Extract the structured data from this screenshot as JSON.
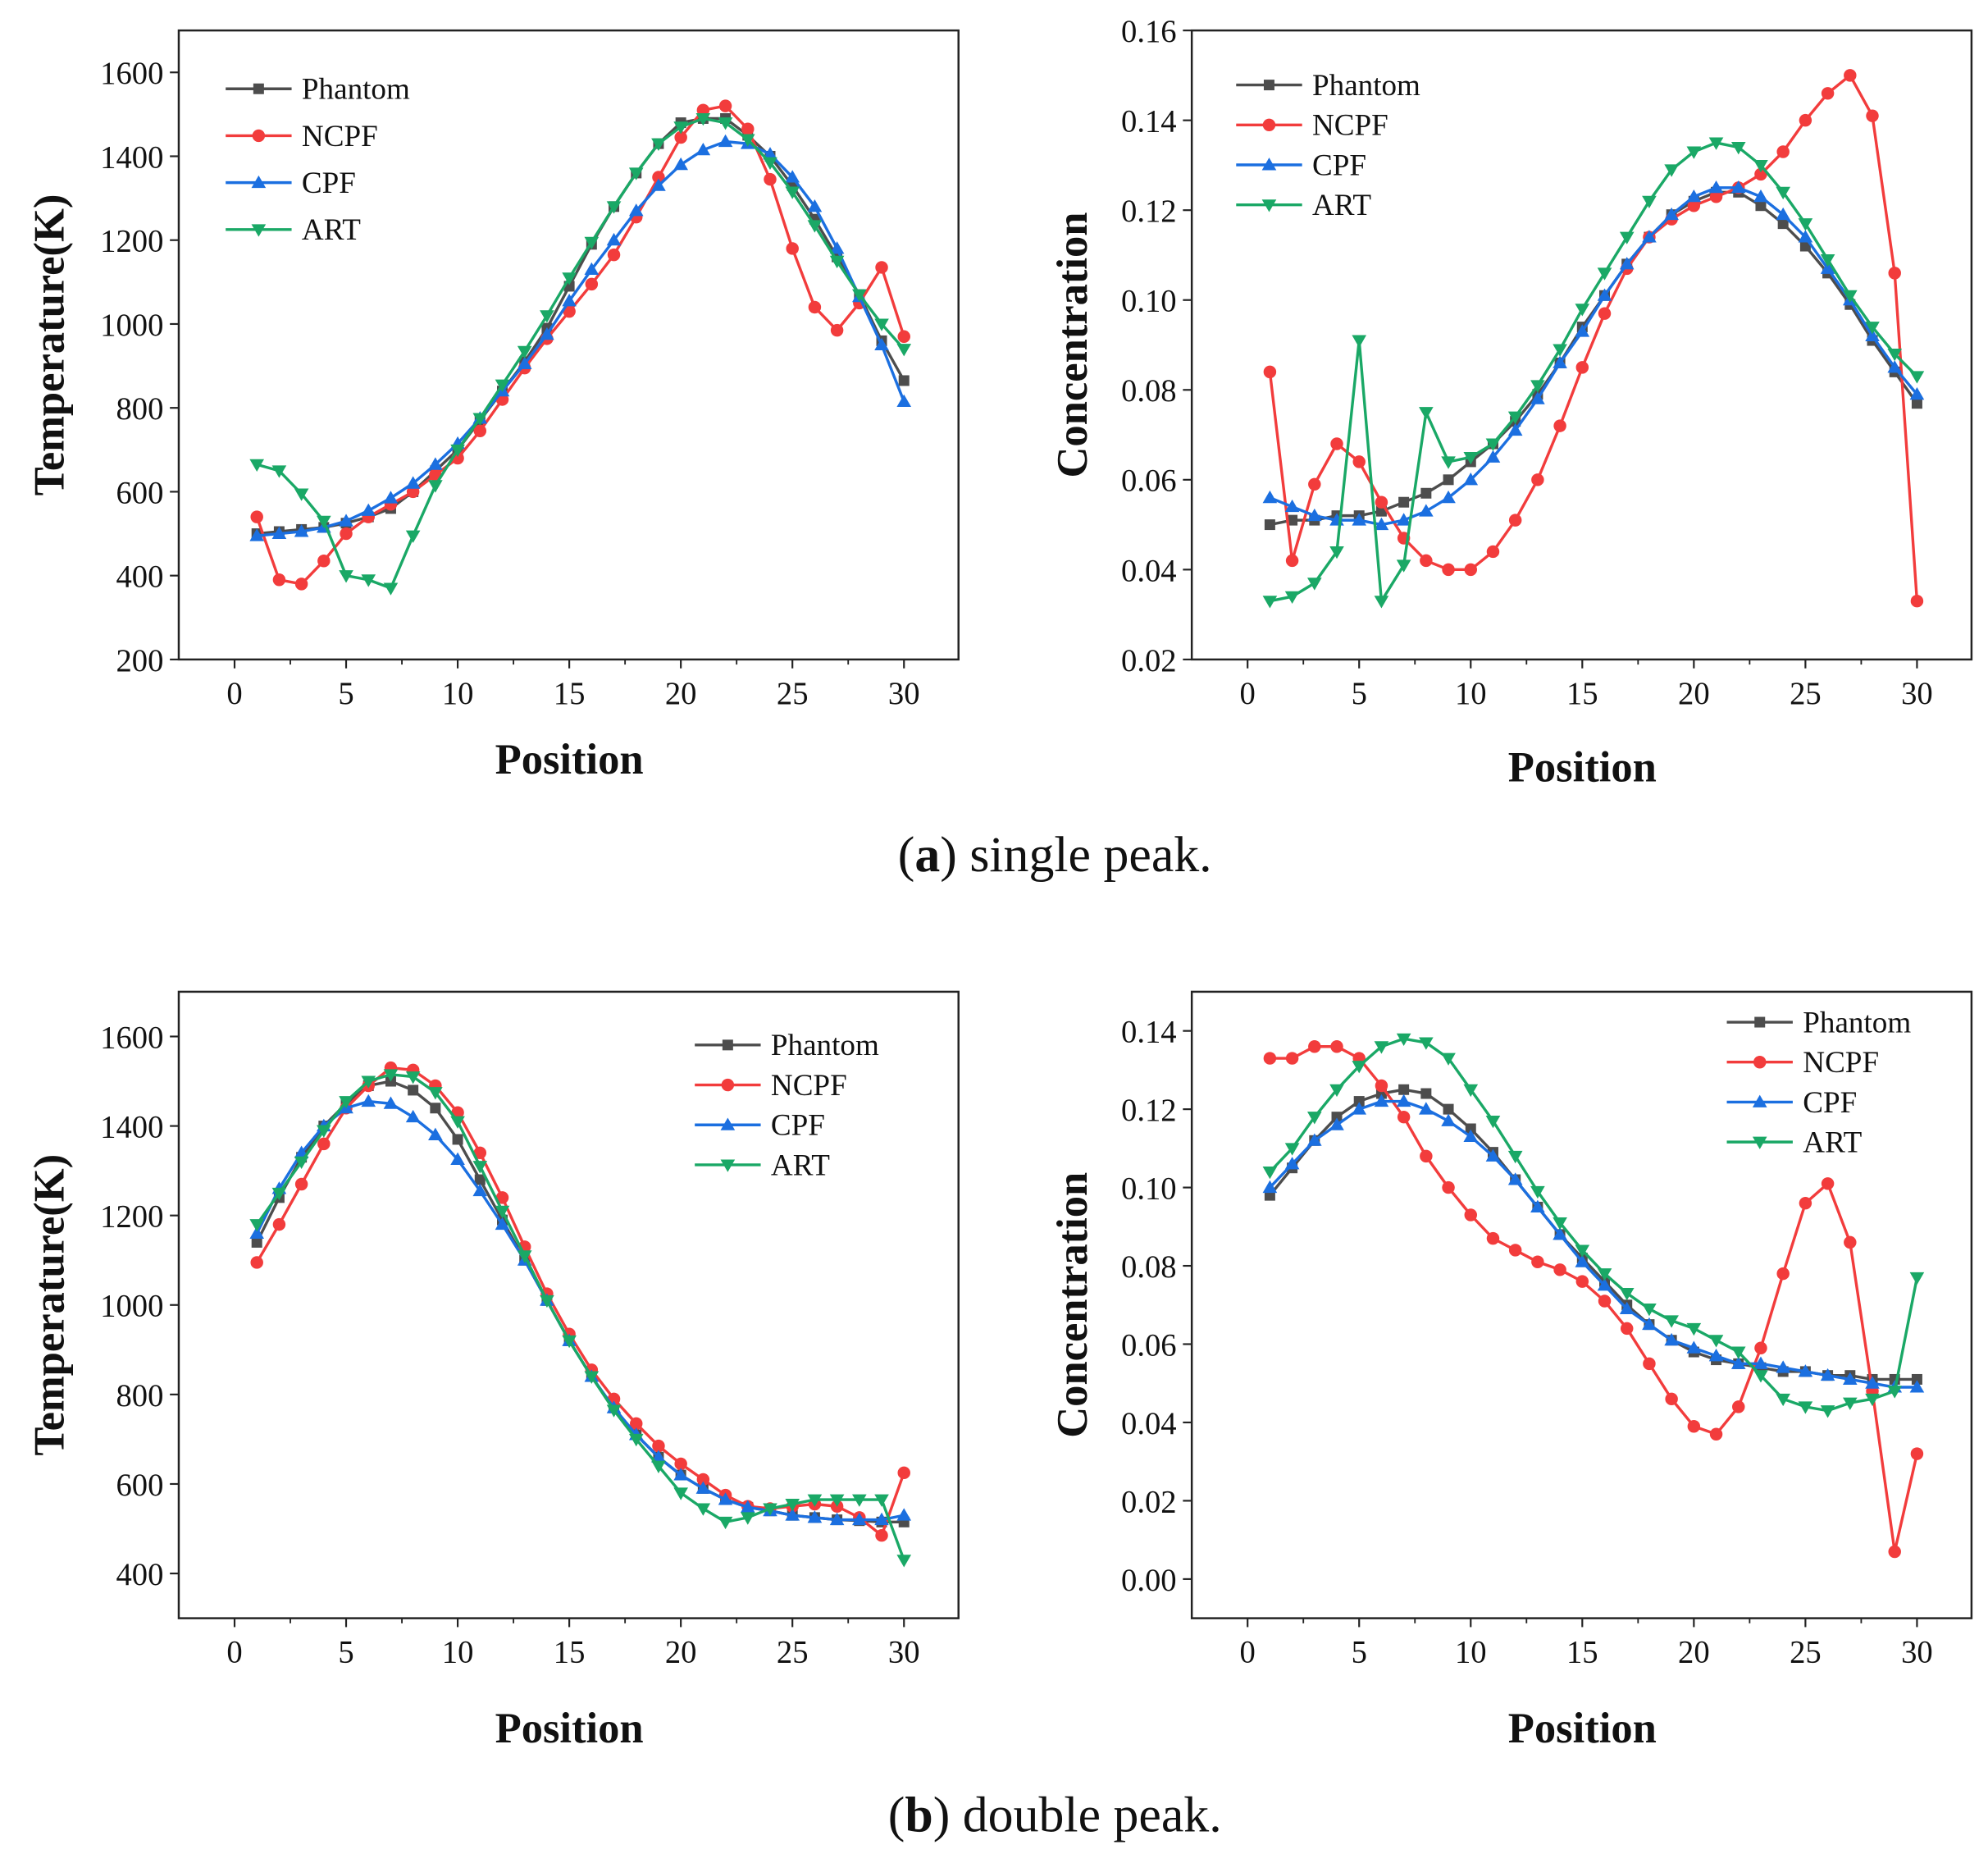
{
  "captions": [
    {
      "letter": "a",
      "text": " single peak.",
      "open": "(",
      "close": ")"
    },
    {
      "letter": "b",
      "text": " double peak.",
      "open": "(",
      "close": ")"
    }
  ],
  "colors": {
    "Phantom": "#4d4d4d",
    "NCPF": "#f23c3c",
    "CPF": "#1b6fe0",
    "ART": "#1aa866"
  },
  "markers": {
    "Phantom": "square",
    "NCPF": "circle",
    "CPF": "triangle-up",
    "ART": "triangle-down"
  },
  "chart_data": [
    {
      "type": "line",
      "title": "",
      "xlabel": "Position",
      "ylabel": "Temperature(K)",
      "xlim": [
        0,
        30
      ],
      "ylim": [
        200,
        1700
      ],
      "xticks": [
        0,
        5,
        10,
        15,
        20,
        25,
        30
      ],
      "yticks": [
        200,
        400,
        600,
        800,
        1000,
        1200,
        1400,
        1600
      ],
      "legend": "top-left",
      "grid": false,
      "x": [
        1,
        2,
        3,
        4,
        5,
        6,
        7,
        8,
        9,
        10,
        11,
        12,
        13,
        14,
        15,
        16,
        17,
        18,
        19,
        20,
        21,
        22,
        23,
        24,
        25,
        26,
        27,
        28,
        29,
        30
      ],
      "series": [
        {
          "name": "Phantom",
          "values": [
            500,
            505,
            510,
            515,
            525,
            540,
            560,
            600,
            650,
            700,
            770,
            840,
            910,
            990,
            1090,
            1190,
            1280,
            1360,
            1430,
            1480,
            1490,
            1490,
            1450,
            1400,
            1330,
            1250,
            1160,
            1070,
            960,
            865
          ]
        },
        {
          "name": "NCPF",
          "values": [
            540,
            390,
            380,
            435,
            500,
            540,
            570,
            600,
            640,
            680,
            745,
            820,
            895,
            965,
            1030,
            1095,
            1165,
            1255,
            1350,
            1445,
            1510,
            1520,
            1465,
            1345,
            1180,
            1040,
            985,
            1050,
            1135,
            970
          ]
        },
        {
          "name": "CPF",
          "values": [
            495,
            500,
            505,
            515,
            530,
            555,
            585,
            620,
            665,
            715,
            775,
            840,
            905,
            975,
            1055,
            1130,
            1200,
            1270,
            1330,
            1380,
            1415,
            1435,
            1430,
            1405,
            1350,
            1280,
            1180,
            1065,
            950,
            815
          ]
        },
        {
          "name": "ART",
          "values": [
            665,
            650,
            595,
            530,
            400,
            390,
            370,
            495,
            615,
            700,
            775,
            855,
            935,
            1020,
            1110,
            1195,
            1280,
            1360,
            1430,
            1470,
            1490,
            1480,
            1440,
            1385,
            1315,
            1235,
            1150,
            1070,
            1000,
            940
          ]
        }
      ]
    },
    {
      "type": "line",
      "title": "",
      "xlabel": "Position",
      "ylabel": "Concentration",
      "xlim": [
        0,
        30
      ],
      "ylim": [
        0.02,
        0.16
      ],
      "xticks": [
        0,
        5,
        10,
        15,
        20,
        25,
        30
      ],
      "yticks": [
        0.02,
        0.04,
        0.06,
        0.08,
        0.1,
        0.12,
        0.14,
        0.16
      ],
      "ydecimals": 2,
      "legend": "top-left",
      "grid": false,
      "x": [
        1,
        2,
        3,
        4,
        5,
        6,
        7,
        8,
        9,
        10,
        11,
        12,
        13,
        14,
        15,
        16,
        17,
        18,
        19,
        20,
        21,
        22,
        23,
        24,
        25,
        26,
        27,
        28,
        29,
        30
      ],
      "series": [
        {
          "name": "Phantom",
          "values": [
            0.05,
            0.051,
            0.051,
            0.052,
            0.052,
            0.053,
            0.055,
            0.057,
            0.06,
            0.064,
            0.068,
            0.073,
            0.079,
            0.086,
            0.094,
            0.101,
            0.108,
            0.114,
            0.119,
            0.122,
            0.124,
            0.124,
            0.121,
            0.117,
            0.112,
            0.106,
            0.099,
            0.091,
            0.084,
            0.077
          ]
        },
        {
          "name": "NCPF",
          "values": [
            0.084,
            0.042,
            0.059,
            0.068,
            0.064,
            0.055,
            0.047,
            0.042,
            0.04,
            0.04,
            0.044,
            0.051,
            0.06,
            0.072,
            0.085,
            0.097,
            0.107,
            0.114,
            0.118,
            0.121,
            0.123,
            0.125,
            0.128,
            0.133,
            0.14,
            0.146,
            0.15,
            0.141,
            0.106,
            0.033
          ]
        },
        {
          "name": "CPF",
          "values": [
            0.056,
            0.054,
            0.052,
            0.051,
            0.051,
            0.05,
            0.051,
            0.053,
            0.056,
            0.06,
            0.065,
            0.071,
            0.078,
            0.086,
            0.093,
            0.101,
            0.108,
            0.114,
            0.119,
            0.123,
            0.125,
            0.125,
            0.123,
            0.119,
            0.114,
            0.107,
            0.1,
            0.092,
            0.085,
            0.079
          ]
        },
        {
          "name": "ART",
          "values": [
            0.033,
            0.034,
            0.037,
            0.044,
            0.091,
            0.033,
            0.041,
            0.075,
            0.064,
            0.065,
            0.068,
            0.074,
            0.081,
            0.089,
            0.098,
            0.106,
            0.114,
            0.122,
            0.129,
            0.133,
            0.135,
            0.134,
            0.13,
            0.124,
            0.117,
            0.109,
            0.101,
            0.094,
            0.088,
            0.083
          ]
        }
      ]
    },
    {
      "type": "line",
      "title": "",
      "xlabel": "Position",
      "ylabel": "Temperature(K)",
      "xlim": [
        0,
        30
      ],
      "ylim": [
        300,
        1700
      ],
      "xticks": [
        0,
        5,
        10,
        15,
        20,
        25,
        30
      ],
      "yticks": [
        400,
        600,
        800,
        1000,
        1200,
        1400,
        1600
      ],
      "legend": "top-right",
      "grid": false,
      "x": [
        1,
        2,
        3,
        4,
        5,
        6,
        7,
        8,
        9,
        10,
        11,
        12,
        13,
        14,
        15,
        16,
        17,
        18,
        19,
        20,
        21,
        22,
        23,
        24,
        25,
        26,
        27,
        28,
        29,
        30
      ],
      "series": [
        {
          "name": "Phantom",
          "values": [
            1140,
            1240,
            1330,
            1400,
            1450,
            1490,
            1500,
            1480,
            1440,
            1370,
            1280,
            1190,
            1100,
            1010,
            920,
            840,
            770,
            710,
            660,
            620,
            590,
            565,
            548,
            540,
            530,
            525,
            520,
            518,
            515,
            515
          ]
        },
        {
          "name": "NCPF",
          "values": [
            1095,
            1180,
            1270,
            1360,
            1440,
            1490,
            1530,
            1525,
            1490,
            1430,
            1340,
            1240,
            1130,
            1025,
            935,
            855,
            790,
            735,
            685,
            645,
            610,
            575,
            550,
            545,
            550,
            555,
            550,
            525,
            485,
            625
          ]
        },
        {
          "name": "CPF",
          "values": [
            1160,
            1260,
            1340,
            1400,
            1440,
            1455,
            1450,
            1420,
            1380,
            1325,
            1255,
            1180,
            1100,
            1010,
            920,
            840,
            770,
            710,
            660,
            620,
            590,
            565,
            548,
            540,
            530,
            525,
            520,
            520,
            520,
            530
          ]
        },
        {
          "name": "ART",
          "values": [
            1180,
            1250,
            1320,
            1390,
            1455,
            1500,
            1515,
            1510,
            1475,
            1410,
            1310,
            1210,
            1110,
            1010,
            920,
            840,
            765,
            700,
            640,
            580,
            545,
            515,
            525,
            545,
            555,
            565,
            565,
            565,
            565,
            430
          ]
        }
      ]
    },
    {
      "type": "line",
      "title": "",
      "xlabel": "Position",
      "ylabel": "Concentration",
      "xlim": [
        0,
        30
      ],
      "ylim": [
        -0.01,
        0.15
      ],
      "xticks": [
        0,
        5,
        10,
        15,
        20,
        25,
        30
      ],
      "yticks": [
        0.0,
        0.02,
        0.04,
        0.06,
        0.08,
        0.1,
        0.12,
        0.14
      ],
      "ydecimals": 2,
      "legend": "top-right",
      "grid": false,
      "x": [
        1,
        2,
        3,
        4,
        5,
        6,
        7,
        8,
        9,
        10,
        11,
        12,
        13,
        14,
        15,
        16,
        17,
        18,
        19,
        20,
        21,
        22,
        23,
        24,
        25,
        26,
        27,
        28,
        29,
        30
      ],
      "series": [
        {
          "name": "Phantom",
          "values": [
            0.098,
            0.105,
            0.112,
            0.118,
            0.122,
            0.124,
            0.125,
            0.124,
            0.12,
            0.115,
            0.109,
            0.102,
            0.095,
            0.088,
            0.082,
            0.076,
            0.07,
            0.065,
            0.061,
            0.058,
            0.056,
            0.055,
            0.054,
            0.053,
            0.053,
            0.052,
            0.052,
            0.051,
            0.051,
            0.051
          ]
        },
        {
          "name": "NCPF",
          "values": [
            0.133,
            0.133,
            0.136,
            0.136,
            0.133,
            0.126,
            0.118,
            0.108,
            0.1,
            0.093,
            0.087,
            0.084,
            0.081,
            0.079,
            0.076,
            0.071,
            0.064,
            0.055,
            0.046,
            0.039,
            0.037,
            0.044,
            0.059,
            0.078,
            0.096,
            0.101,
            0.086,
            0.048,
            0.007,
            0.032
          ]
        },
        {
          "name": "CPF",
          "values": [
            0.1,
            0.106,
            0.112,
            0.116,
            0.12,
            0.122,
            0.122,
            0.12,
            0.117,
            0.113,
            0.108,
            0.102,
            0.095,
            0.088,
            0.081,
            0.075,
            0.069,
            0.065,
            0.061,
            0.059,
            0.057,
            0.055,
            0.055,
            0.054,
            0.053,
            0.052,
            0.051,
            0.05,
            0.049,
            0.049
          ]
        },
        {
          "name": "ART",
          "values": [
            0.104,
            0.11,
            0.118,
            0.125,
            0.131,
            0.136,
            0.138,
            0.137,
            0.133,
            0.125,
            0.117,
            0.108,
            0.099,
            0.091,
            0.084,
            0.078,
            0.073,
            0.069,
            0.066,
            0.064,
            0.061,
            0.058,
            0.052,
            0.046,
            0.044,
            0.043,
            0.045,
            0.046,
            0.048,
            0.077
          ]
        }
      ]
    }
  ]
}
